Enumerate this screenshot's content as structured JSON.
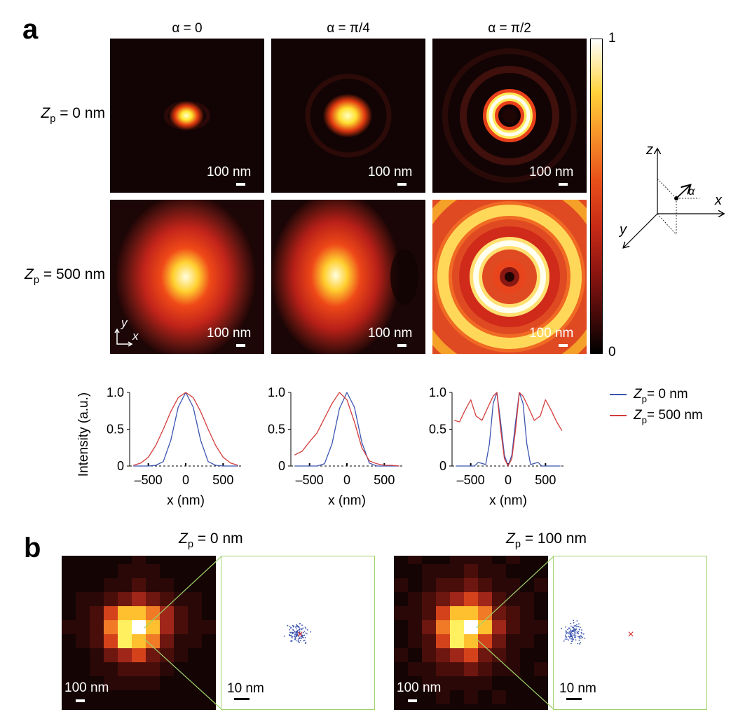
{
  "panel_a": {
    "letter": "a",
    "columns": [
      "α = 0",
      "α = π/4",
      "α = π/2"
    ],
    "rows": [
      {
        "var": "Z",
        "sub": "p",
        "rest": " = 0 nm"
      },
      {
        "var": "Z",
        "sub": "p",
        "rest": " = 500 nm"
      }
    ],
    "scale_label": "100 nm",
    "inset_axes": {
      "y": "y",
      "x": "x"
    },
    "colorbar": {
      "max": "1",
      "min": "0"
    },
    "axis_diagram": {
      "z": "z",
      "x": "x",
      "y": "y",
      "alpha": "α"
    },
    "legend": [
      {
        "var": "Z",
        "sub": "p",
        "rest": " = 0 nm",
        "color": "#3b55b0"
      },
      {
        "var": "Z",
        "sub": "p",
        "rest": " = 500 nm",
        "color": "#d43c3c"
      }
    ]
  },
  "chart_data": [
    {
      "type": "line",
      "title": "α = 0",
      "xlabel": "x (nm)",
      "ylabel": "Intensity (a.u.)",
      "xlim": [
        -750,
        750
      ],
      "ylim": [
        0,
        1
      ],
      "xticks": [
        "–500",
        "0",
        "500"
      ],
      "yticks": [
        "0",
        "0.5",
        "1.0"
      ],
      "series": [
        {
          "name": "Zp = 0 nm",
          "x": [
            -700,
            -500,
            -400,
            -300,
            -200,
            -100,
            0,
            100,
            200,
            300,
            400,
            500,
            700
          ],
          "values": [
            0,
            0,
            0.01,
            0.06,
            0.35,
            0.8,
            1.0,
            0.8,
            0.35,
            0.06,
            0.01,
            0,
            0
          ]
        },
        {
          "name": "Zp = 500 nm",
          "x": [
            -700,
            -600,
            -500,
            -400,
            -300,
            -200,
            -100,
            0,
            100,
            200,
            300,
            400,
            500,
            600,
            700
          ],
          "values": [
            0.01,
            0.04,
            0.12,
            0.28,
            0.5,
            0.74,
            0.93,
            1.0,
            0.93,
            0.74,
            0.5,
            0.28,
            0.12,
            0.04,
            0.01
          ]
        }
      ]
    },
    {
      "type": "line",
      "title": "α = π/4",
      "xlabel": "x (nm)",
      "ylabel": "",
      "xlim": [
        -750,
        750
      ],
      "ylim": [
        0,
        1
      ],
      "xticks": [
        "–500",
        "0",
        "500"
      ],
      "yticks": [
        "0",
        "0.5",
        "1.0"
      ],
      "series": [
        {
          "name": "Zp = 0 nm",
          "x": [
            -700,
            -400,
            -300,
            -200,
            -100,
            0,
            100,
            200,
            300,
            400,
            700
          ],
          "values": [
            0,
            0,
            0.03,
            0.3,
            0.78,
            1.0,
            0.8,
            0.32,
            0.04,
            0,
            0
          ]
        },
        {
          "name": "Zp = 500 nm",
          "x": [
            -700,
            -600,
            -500,
            -400,
            -300,
            -200,
            -100,
            0,
            100,
            200,
            300,
            400,
            500,
            600,
            700
          ],
          "values": [
            0.15,
            0.2,
            0.33,
            0.45,
            0.65,
            0.85,
            1.0,
            0.9,
            0.6,
            0.25,
            0.07,
            0.03,
            0.01,
            0.01,
            0.0
          ]
        }
      ]
    },
    {
      "type": "line",
      "title": "α = π/2",
      "xlabel": "x (nm)",
      "ylabel": "",
      "xlim": [
        -750,
        750
      ],
      "ylim": [
        0,
        1
      ],
      "xticks": [
        "–500",
        "0",
        "500"
      ],
      "yticks": [
        "0",
        "0.5",
        "1.0"
      ],
      "series": [
        {
          "name": "Zp = 0 nm",
          "x": [
            -700,
            -450,
            -400,
            -300,
            -250,
            -200,
            -150,
            -100,
            -50,
            0,
            50,
            100,
            150,
            200,
            250,
            300,
            400,
            450,
            700
          ],
          "values": [
            0,
            0,
            0.05,
            0.02,
            0.3,
            0.85,
            1.0,
            0.6,
            0.15,
            0,
            0.15,
            0.6,
            1.0,
            0.85,
            0.3,
            0.02,
            0.05,
            0,
            0
          ]
        },
        {
          "name": "Zp = 500 nm",
          "x": [
            -720,
            -650,
            -580,
            -500,
            -430,
            -350,
            -270,
            -200,
            -150,
            -100,
            -50,
            0,
            50,
            100,
            150,
            200,
            270,
            350,
            430,
            500,
            580,
            650,
            720
          ],
          "values": [
            0.62,
            0.6,
            0.75,
            0.9,
            0.68,
            0.62,
            0.8,
            0.95,
            1.0,
            0.5,
            0.1,
            0.0,
            0.1,
            0.5,
            1.0,
            0.95,
            0.8,
            0.62,
            0.68,
            0.9,
            0.75,
            0.6,
            0.48
          ]
        }
      ]
    }
  ],
  "panel_b": {
    "letter": "b",
    "titles": [
      {
        "var": "Z",
        "sub": "p",
        "rest": " = 0 nm"
      },
      {
        "var": "Z",
        "sub": "p",
        "rest": " = 100 nm"
      }
    ],
    "scale_left": "100 nm",
    "scale_right": "10 nm",
    "marker_color": "#d42a2a",
    "dot_color": "#3b55b0"
  }
}
